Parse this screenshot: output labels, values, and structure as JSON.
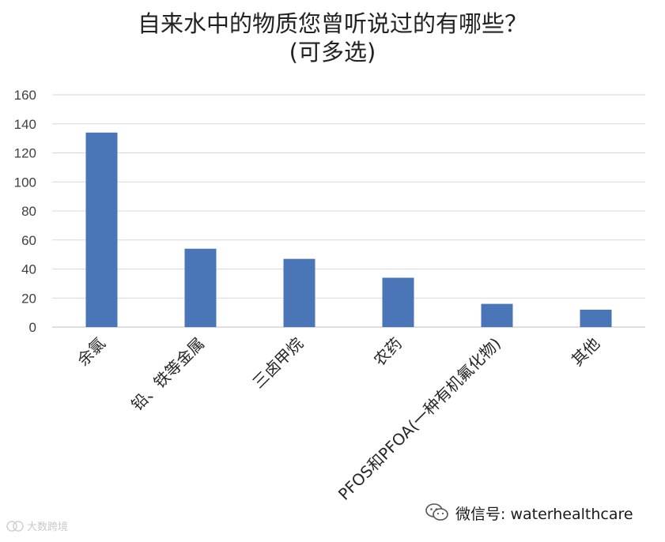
{
  "chart_data": {
    "type": "bar",
    "title": "自来水中的物质您曾听说过的有哪些？",
    "subtitle": "(可多选)",
    "categories": [
      "余氯",
      "铅、铁等金属",
      "三卤甲烷",
      "农药",
      "PFOS和PFOA(一种有机氟化物)",
      "其他"
    ],
    "values": [
      134,
      54,
      47,
      34,
      16,
      12
    ],
    "ylim": [
      0,
      160
    ],
    "yticks": [
      0,
      20,
      40,
      60,
      80,
      100,
      120,
      140,
      160
    ],
    "grid": true,
    "legend": "none",
    "bar_color": "#4a76b8"
  },
  "watermark": {
    "text": "微信号: waterhealthcare"
  },
  "corner_mark": {
    "text": "大数跨境"
  }
}
